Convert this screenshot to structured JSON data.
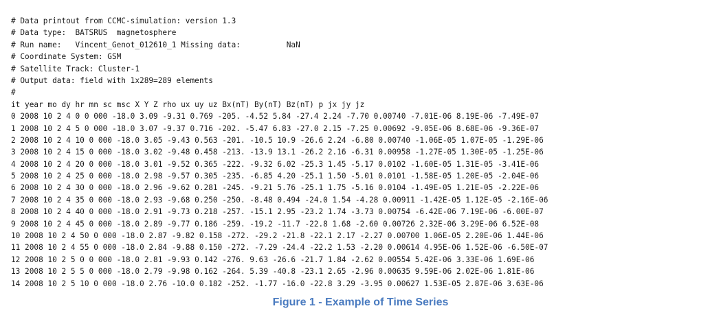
{
  "header_lines": [
    "# Data printout from CCMC-simulation: version 1.3",
    "# Data type:  BATSRUS  magnetosphere",
    "# Run name:   Vincent_Genot_012610_1 Missing data:          NaN",
    "# Coordinate System: GSM",
    "# Satellite Track: Cluster-1",
    "# Output data: field with 1x289=289 elements",
    "#"
  ],
  "column_header": "it year mo dy hr mn sc msc X Y Z rho ux uy uz Bx(nT) By(nT) Bz(nT) p jx jy jz",
  "rows": [
    "0 2008 10 2 4 0 0 000 -18.0 3.09 -9.31 0.769 -205. -4.52 5.84 -27.4 2.24 -7.70 0.00740 -7.01E-06 8.19E-06 -7.49E-07",
    "1 2008 10 2 4 5 0 000 -18.0 3.07 -9.37 0.716 -202. -5.47 6.83 -27.0 2.15 -7.25 0.00692 -9.05E-06 8.68E-06 -9.36E-07",
    "2 2008 10 2 4 10 0 000 -18.0 3.05 -9.43 0.563 -201. -10.5 10.9 -26.6 2.24 -6.80 0.00740 -1.06E-05 1.07E-05 -1.29E-06",
    "3 2008 10 2 4 15 0 000 -18.0 3.02 -9.48 0.458 -213. -13.9 13.1 -26.2 2.16 -6.31 0.00958 -1.27E-05 1.30E-05 -1.25E-06",
    "4 2008 10 2 4 20 0 000 -18.0 3.01 -9.52 0.365 -222. -9.32 6.02 -25.3 1.45 -5.17 0.0102 -1.60E-05 1.31E-05 -3.41E-06",
    "5 2008 10 2 4 25 0 000 -18.0 2.98 -9.57 0.305 -235. -6.85 4.20 -25.1 1.50 -5.01 0.0101 -1.58E-05 1.20E-05 -2.04E-06",
    "6 2008 10 2 4 30 0 000 -18.0 2.96 -9.62 0.281 -245. -9.21 5.76 -25.1 1.75 -5.16 0.0104 -1.49E-05 1.21E-05 -2.22E-06",
    "7 2008 10 2 4 35 0 000 -18.0 2.93 -9.68 0.250 -250. -8.48 0.494 -24.0 1.54 -4.28 0.00911 -1.42E-05 1.12E-05 -2.16E-06",
    "8 2008 10 2 4 40 0 000 -18.0 2.91 -9.73 0.218 -257. -15.1 2.95 -23.2 1.74 -3.73 0.00754 -6.42E-06 7.19E-06 -6.00E-07",
    "9 2008 10 2 4 45 0 000 -18.0 2.89 -9.77 0.186 -259. -19.2 -11.7 -22.8 1.68 -2.60 0.00726 2.32E-06 3.29E-06 6.52E-08",
    "10 2008 10 2 4 50 0 000 -18.0 2.87 -9.82 0.158 -272. -29.2 -21.8 -22.1 2.17 -2.27 0.00700 1.06E-05 2.20E-06 1.44E-06",
    "11 2008 10 2 4 55 0 000 -18.0 2.84 -9.88 0.150 -272. -7.29 -24.4 -22.2 1.53 -2.20 0.00614 4.95E-06 1.52E-06 -6.50E-07",
    "12 2008 10 2 5 0 0 000 -18.0 2.81 -9.93 0.142 -276. 9.63 -26.6 -21.7 1.84 -2.62 0.00554 5.42E-06 3.33E-06 1.69E-06",
    "13 2008 10 2 5 5 0 000 -18.0 2.79 -9.98 0.162 -264. 5.39 -40.8 -23.1 2.65 -2.96 0.00635 9.59E-06 2.02E-06 1.81E-06",
    "14 2008 10 2 5 10 0 000 -18.0 2.76 -10.0 0.182 -252. -1.77 -16.0 -22.8 3.29 -3.95 0.00627 1.53E-05 2.87E-06 3.63E-06"
  ],
  "caption": "Figure 1 - Example of Time Series"
}
